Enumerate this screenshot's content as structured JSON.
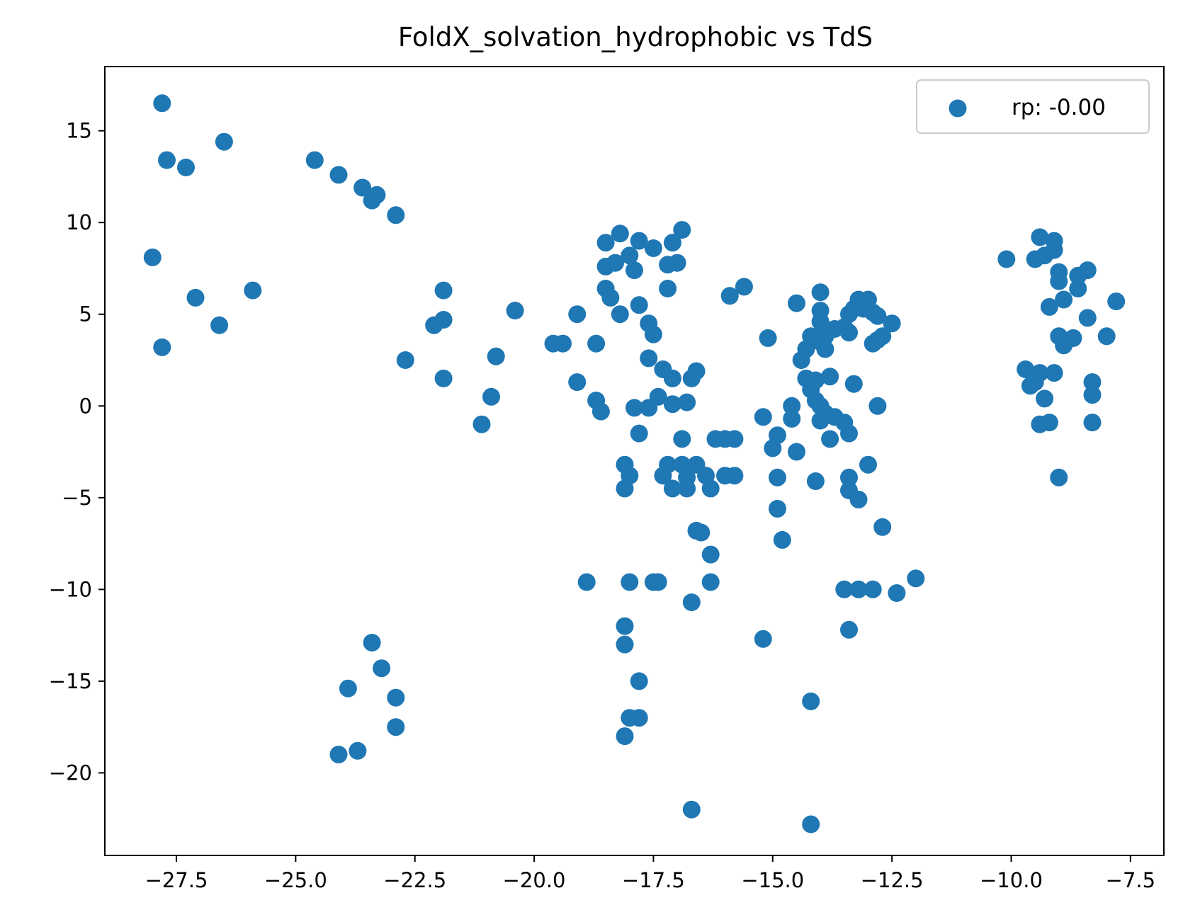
{
  "chart_data": {
    "type": "scatter",
    "title": "FoldX_solvation_hydrophobic vs TdS",
    "xlabel": "",
    "ylabel": "",
    "xlim": [
      -29.0,
      -6.8
    ],
    "ylim": [
      -24.5,
      18.5
    ],
    "xticks": [
      -27.5,
      -25.0,
      -22.5,
      -20.0,
      -17.5,
      -15.0,
      -12.5,
      -10.0,
      -7.5
    ],
    "xtick_labels": [
      "−27.5",
      "−25.0",
      "−22.5",
      "−20.0",
      "−17.5",
      "−15.0",
      "−12.5",
      "−10.0",
      "−7.5"
    ],
    "yticks": [
      15,
      10,
      5,
      0,
      -5,
      -10,
      -15,
      -20
    ],
    "ytick_labels": [
      "15",
      "10",
      "5",
      "0",
      "−5",
      "−10",
      "−15",
      "−20"
    ],
    "grid": false,
    "legend_position": "top-right",
    "series": [
      {
        "name": "rp: -0.00",
        "color": "#1f77b4",
        "points": [
          [
            -27.8,
            16.5
          ],
          [
            -27.7,
            13.4
          ],
          [
            -27.3,
            13.0
          ],
          [
            -26.5,
            14.4
          ],
          [
            -28.0,
            8.1
          ],
          [
            -27.8,
            3.2
          ],
          [
            -27.1,
            5.9
          ],
          [
            -26.6,
            4.4
          ],
          [
            -25.9,
            6.3
          ],
          [
            -24.6,
            13.4
          ],
          [
            -24.1,
            12.6
          ],
          [
            -23.6,
            11.9
          ],
          [
            -23.4,
            11.2
          ],
          [
            -23.3,
            11.5
          ],
          [
            -22.9,
            10.4
          ],
          [
            -22.7,
            2.5
          ],
          [
            -21.9,
            6.3
          ],
          [
            -21.9,
            4.7
          ],
          [
            -22.1,
            4.4
          ],
          [
            -21.9,
            1.5
          ],
          [
            -20.8,
            2.7
          ],
          [
            -20.9,
            0.5
          ],
          [
            -21.1,
            -1.0
          ],
          [
            -20.4,
            5.2
          ],
          [
            -19.6,
            3.4
          ],
          [
            -19.4,
            3.4
          ],
          [
            -19.1,
            5.0
          ],
          [
            -19.1,
            1.3
          ],
          [
            -18.7,
            3.4
          ],
          [
            -18.7,
            0.3
          ],
          [
            -18.6,
            -0.3
          ],
          [
            -18.9,
            -9.6
          ],
          [
            -18.5,
            8.9
          ],
          [
            -18.5,
            7.6
          ],
          [
            -18.3,
            7.8
          ],
          [
            -18.2,
            9.4
          ],
          [
            -18.0,
            8.2
          ],
          [
            -17.9,
            7.4
          ],
          [
            -17.8,
            9.0
          ],
          [
            -18.5,
            6.4
          ],
          [
            -18.4,
            5.9
          ],
          [
            -18.2,
            5.0
          ],
          [
            -17.8,
            5.5
          ],
          [
            -17.6,
            4.5
          ],
          [
            -17.5,
            3.9
          ],
          [
            -17.6,
            2.6
          ],
          [
            -17.3,
            2.0
          ],
          [
            -17.1,
            1.5
          ],
          [
            -17.4,
            0.5
          ],
          [
            -17.6,
            -0.1
          ],
          [
            -17.9,
            -0.1
          ],
          [
            -17.1,
            0.1
          ],
          [
            -16.8,
            0.2
          ],
          [
            -17.8,
            -1.5
          ],
          [
            -18.1,
            -3.2
          ],
          [
            -18.0,
            -3.8
          ],
          [
            -18.1,
            -4.5
          ],
          [
            -17.5,
            8.6
          ],
          [
            -17.2,
            7.7
          ],
          [
            -17.0,
            7.8
          ],
          [
            -17.1,
            8.9
          ],
          [
            -16.9,
            9.6
          ],
          [
            -17.2,
            6.4
          ],
          [
            -16.7,
            1.5
          ],
          [
            -16.6,
            1.9
          ],
          [
            -16.9,
            -1.8
          ],
          [
            -17.2,
            -3.2
          ],
          [
            -17.3,
            -3.8
          ],
          [
            -17.1,
            -4.5
          ],
          [
            -16.9,
            -3.2
          ],
          [
            -16.8,
            -3.9
          ],
          [
            -16.8,
            -4.5
          ],
          [
            -16.6,
            -3.2
          ],
          [
            -16.4,
            -3.8
          ],
          [
            -16.3,
            -4.5
          ],
          [
            -16.6,
            -6.8
          ],
          [
            -16.5,
            -6.9
          ],
          [
            -16.3,
            -8.1
          ],
          [
            -16.3,
            -9.6
          ],
          [
            -18.0,
            -9.6
          ],
          [
            -17.5,
            -9.6
          ],
          [
            -17.4,
            -9.6
          ],
          [
            -16.7,
            -10.7
          ],
          [
            -18.1,
            -12.0
          ],
          [
            -18.1,
            -13.0
          ],
          [
            -17.8,
            -15.0
          ],
          [
            -18.0,
            -17.0
          ],
          [
            -17.8,
            -17.0
          ],
          [
            -18.1,
            -18.0
          ],
          [
            -16.7,
            -22.0
          ],
          [
            -16.2,
            -1.8
          ],
          [
            -16.0,
            -1.8
          ],
          [
            -15.8,
            -1.8
          ],
          [
            -16.0,
            -3.8
          ],
          [
            -15.8,
            -3.8
          ],
          [
            -15.9,
            6.0
          ],
          [
            -15.6,
            6.5
          ],
          [
            -15.1,
            3.7
          ],
          [
            -15.2,
            -0.6
          ],
          [
            -14.9,
            -1.6
          ],
          [
            -15.0,
            -2.3
          ],
          [
            -14.9,
            -3.9
          ],
          [
            -14.9,
            -5.6
          ],
          [
            -14.8,
            -7.3
          ],
          [
            -14.5,
            -2.5
          ],
          [
            -14.6,
            -0.7
          ],
          [
            -14.6,
            0.0
          ],
          [
            -14.5,
            5.6
          ],
          [
            -14.3,
            3.1
          ],
          [
            -14.4,
            2.5
          ],
          [
            -14.3,
            1.5
          ],
          [
            -14.2,
            0.9
          ],
          [
            -14.1,
            1.4
          ],
          [
            -14.2,
            3.8
          ],
          [
            -14.0,
            3.5
          ],
          [
            -13.9,
            3.1
          ],
          [
            -14.0,
            6.2
          ],
          [
            -14.0,
            5.2
          ],
          [
            -14.0,
            4.6
          ],
          [
            -13.9,
            4.2
          ],
          [
            -13.9,
            3.8
          ],
          [
            -13.7,
            4.2
          ],
          [
            -14.1,
            0.3
          ],
          [
            -14.0,
            0.0
          ],
          [
            -13.8,
            1.6
          ],
          [
            -14.0,
            -0.8
          ],
          [
            -13.9,
            -0.4
          ],
          [
            -13.7,
            -0.6
          ],
          [
            -13.5,
            -0.9
          ],
          [
            -13.8,
            -1.8
          ],
          [
            -13.4,
            -1.5
          ],
          [
            -14.1,
            -4.1
          ],
          [
            -13.4,
            -3.9
          ],
          [
            -13.4,
            -4.6
          ],
          [
            -13.2,
            -5.1
          ],
          [
            -13.0,
            -3.2
          ],
          [
            -12.7,
            -6.6
          ],
          [
            -13.5,
            4.3
          ],
          [
            -13.4,
            5.0
          ],
          [
            -13.3,
            5.3
          ],
          [
            -13.4,
            4.0
          ],
          [
            -13.2,
            5.8
          ],
          [
            -13.0,
            5.8
          ],
          [
            -13.1,
            5.3
          ],
          [
            -12.9,
            5.1
          ],
          [
            -12.8,
            4.9
          ],
          [
            -12.5,
            4.5
          ],
          [
            -12.9,
            3.4
          ],
          [
            -12.8,
            3.6
          ],
          [
            -12.7,
            3.8
          ],
          [
            -13.3,
            1.2
          ],
          [
            -12.8,
            0.0
          ],
          [
            -13.5,
            -10.0
          ],
          [
            -13.2,
            -10.0
          ],
          [
            -12.9,
            -10.0
          ],
          [
            -12.4,
            -10.2
          ],
          [
            -12.0,
            -9.4
          ],
          [
            -13.4,
            -12.2
          ],
          [
            -15.2,
            -12.7
          ],
          [
            -14.2,
            -16.1
          ],
          [
            -14.2,
            -22.8
          ],
          [
            -10.1,
            8.0
          ],
          [
            -9.5,
            8.0
          ],
          [
            -9.4,
            9.2
          ],
          [
            -9.3,
            8.2
          ],
          [
            -9.1,
            9.0
          ],
          [
            -9.1,
            8.5
          ],
          [
            -9.0,
            7.3
          ],
          [
            -9.0,
            6.8
          ],
          [
            -9.2,
            5.4
          ],
          [
            -8.9,
            5.8
          ],
          [
            -8.6,
            7.1
          ],
          [
            -8.4,
            7.4
          ],
          [
            -8.6,
            6.4
          ],
          [
            -8.4,
            4.8
          ],
          [
            -7.8,
            5.7
          ],
          [
            -8.0,
            3.8
          ],
          [
            -8.7,
            3.7
          ],
          [
            -9.0,
            3.8
          ],
          [
            -8.9,
            3.3
          ],
          [
            -9.7,
            2.0
          ],
          [
            -9.5,
            1.3
          ],
          [
            -9.4,
            1.8
          ],
          [
            -9.1,
            1.8
          ],
          [
            -9.6,
            1.1
          ],
          [
            -9.3,
            0.4
          ],
          [
            -9.4,
            -1.0
          ],
          [
            -9.2,
            -0.9
          ],
          [
            -8.3,
            1.3
          ],
          [
            -8.3,
            0.6
          ],
          [
            -8.3,
            -0.9
          ],
          [
            -9.0,
            -3.9
          ],
          [
            -23.4,
            -12.9
          ],
          [
            -23.2,
            -14.3
          ],
          [
            -22.9,
            -15.9
          ],
          [
            -23.9,
            -15.4
          ],
          [
            -22.9,
            -17.5
          ],
          [
            -23.7,
            -18.8
          ],
          [
            -24.1,
            -19.0
          ]
        ]
      }
    ]
  }
}
